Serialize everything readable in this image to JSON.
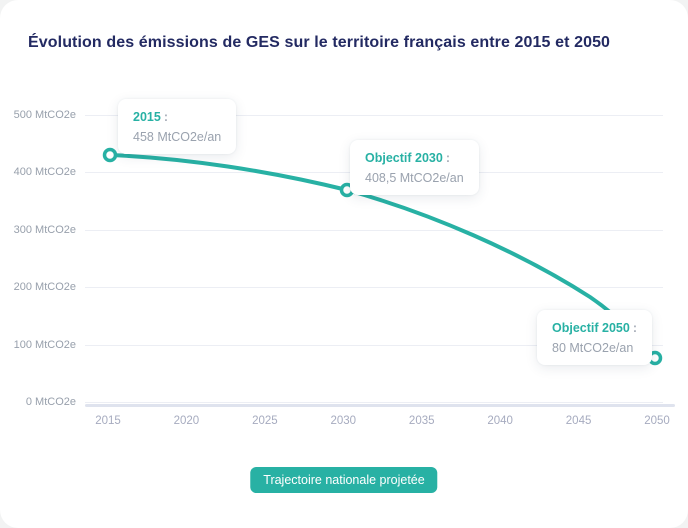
{
  "page": {
    "title": "Évolution des émissions de GES sur le territoire français entre 2015 et 2050"
  },
  "colors": {
    "accent_teal": "#28B1A4",
    "title_navy": "#232A62",
    "axis_label_gray": "#98A0AC",
    "x_label_gray": "#A6ABBF",
    "gridline": "#ECEEF4",
    "axis_line": "#DFE3EE",
    "tooltip_value_gray": "#9AA2AE"
  },
  "y_axis": {
    "labels": [
      "500 MtCO2e",
      "400 MtCO2e",
      "300 MtCO2e",
      "200 MtCO2e",
      "100 MtCO2e",
      "0 MtCO2e"
    ]
  },
  "x_axis": {
    "labels": [
      "2015",
      "2020",
      "2025",
      "2030",
      "2035",
      "2040",
      "2045",
      "2050"
    ]
  },
  "annotations": [
    {
      "label": "2015",
      "colon": ":",
      "value": "458 MtCO2e/an"
    },
    {
      "label": "Objectif 2030",
      "colon": ":",
      "value": "408,5 MtCO2e/an"
    },
    {
      "label": "Objectif 2050",
      "colon": ":",
      "value": "80 MtCO2e/an"
    }
  ],
  "legend": {
    "button_label": "Trajectoire nationale projetée"
  },
  "chart_data": {
    "type": "line",
    "title": "Évolution des émissions de GES sur le territoire français entre 2015 et 2050",
    "x": [
      2015,
      2030,
      2050
    ],
    "series": [
      {
        "name": "Trajectoire nationale projetée",
        "values": [
          458,
          408.5,
          80
        ]
      }
    ],
    "xlabel": "",
    "ylabel": "MtCO2e",
    "xlim": [
      2015,
      2050
    ],
    "ylim": [
      0,
      500
    ],
    "x_ticks": [
      2015,
      2020,
      2025,
      2030,
      2035,
      2040,
      2045,
      2050
    ],
    "y_ticks": [
      0,
      100,
      200,
      300,
      400,
      500
    ],
    "grid": true,
    "legend_position": "bottom",
    "point_style": "hollow-circle",
    "annotations": [
      "2015 : 458 MtCO2e/an",
      "Objectif 2030 : 408,5 MtCO2e/an",
      "Objectif 2050 : 80 MtCO2e/an"
    ]
  }
}
